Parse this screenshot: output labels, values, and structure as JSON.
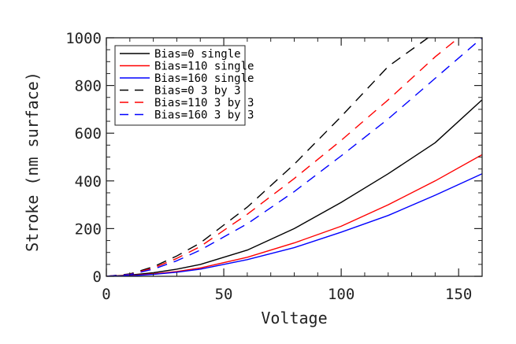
{
  "chart_data": {
    "type": "line",
    "title": "",
    "xlabel": "Voltage",
    "ylabel": "Stroke (nm surface)",
    "xlim": [
      0,
      160
    ],
    "ylim": [
      0,
      1000
    ],
    "xticks": [
      0,
      50,
      100,
      150
    ],
    "xtick_labels": [
      "0",
      "50",
      "100",
      "150"
    ],
    "yticks": [
      0,
      200,
      400,
      600,
      800,
      1000
    ],
    "ytick_labels": [
      "0",
      "200",
      "400",
      "600",
      "800",
      "1000"
    ],
    "grid": false,
    "legend_position": "top-left",
    "series": [
      {
        "name": "Bias=0 single",
        "color": "#000000",
        "dash": "solid",
        "x": [
          0,
          10,
          20,
          30,
          40,
          60,
          80,
          100,
          120,
          140,
          160
        ],
        "y": [
          0,
          5,
          15,
          30,
          50,
          110,
          200,
          310,
          430,
          560,
          740
        ]
      },
      {
        "name": "Bias=110 single",
        "color": "#ff0000",
        "dash": "solid",
        "x": [
          0,
          10,
          20,
          30,
          40,
          60,
          80,
          100,
          120,
          140,
          160
        ],
        "y": [
          0,
          3,
          10,
          20,
          35,
          80,
          140,
          210,
          300,
          400,
          510
        ]
      },
      {
        "name": "Bias=160 single",
        "color": "#0000ff",
        "dash": "solid",
        "x": [
          0,
          10,
          20,
          30,
          40,
          60,
          80,
          100,
          120,
          140,
          160
        ],
        "y": [
          0,
          2,
          8,
          17,
          30,
          70,
          120,
          185,
          255,
          340,
          430
        ]
      },
      {
        "name": "Bias=0 3 by 3",
        "color": "#000000",
        "dash": "dashed",
        "x": [
          0,
          10,
          20,
          30,
          40,
          60,
          80,
          100,
          120,
          137
        ],
        "y": [
          0,
          10,
          40,
          85,
          140,
          290,
          470,
          670,
          880,
          1000
        ]
      },
      {
        "name": "Bias=110 3 by 3",
        "color": "#ff0000",
        "dash": "dashed",
        "x": [
          0,
          10,
          20,
          30,
          40,
          60,
          80,
          100,
          120,
          140,
          150
        ],
        "y": [
          0,
          8,
          35,
          75,
          125,
          260,
          410,
          570,
          740,
          920,
          1000
        ]
      },
      {
        "name": "Bias=160 3 by 3",
        "color": "#0000ff",
        "dash": "dashed",
        "x": [
          0,
          10,
          20,
          30,
          40,
          60,
          80,
          100,
          120,
          140,
          160
        ],
        "y": [
          0,
          7,
          30,
          65,
          110,
          220,
          355,
          505,
          660,
          830,
          1000
        ]
      }
    ]
  }
}
